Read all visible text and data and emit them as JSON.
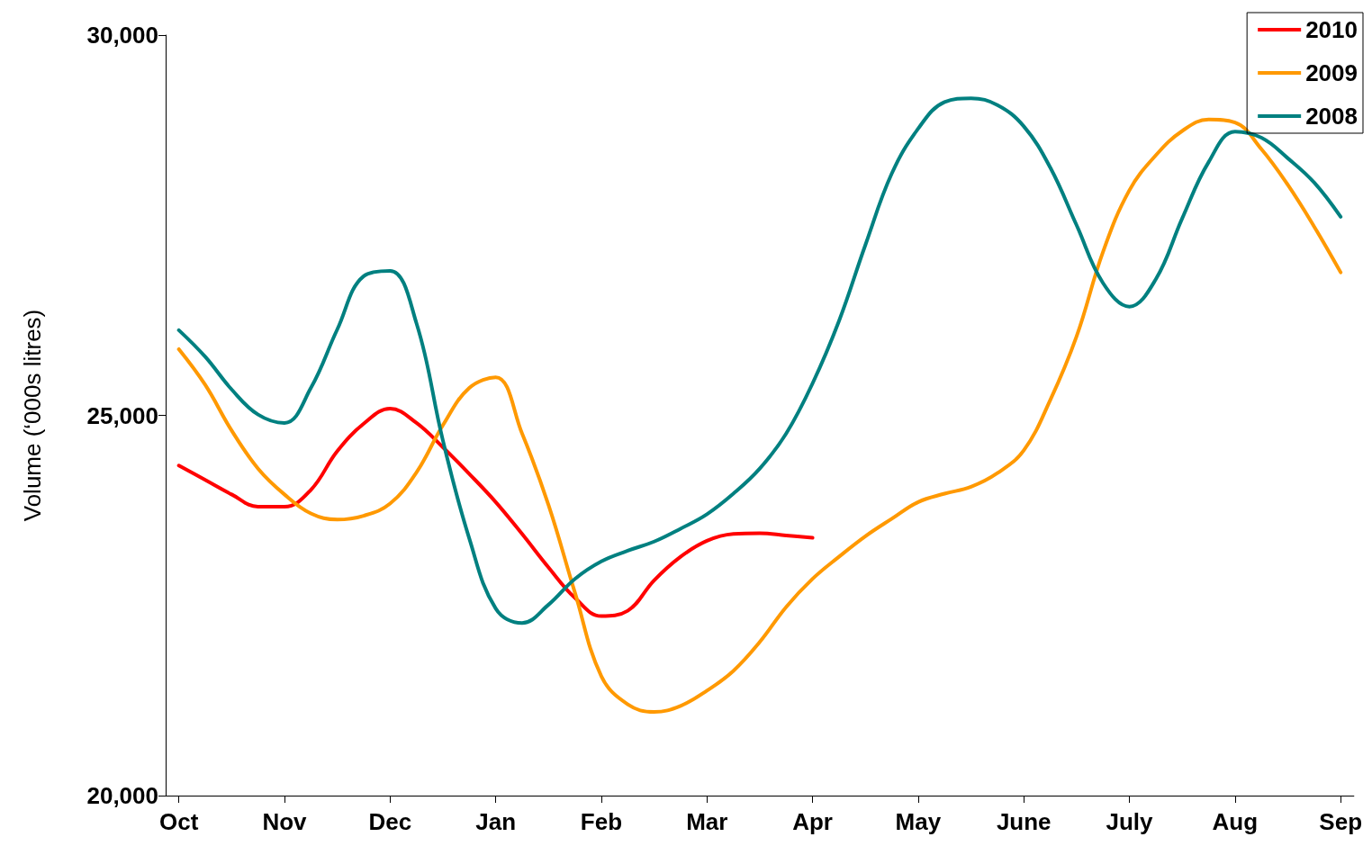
{
  "chart_data": {
    "type": "line",
    "ylabel": "Volume (‘000s litres)",
    "ylim": [
      20000,
      30000
    ],
    "yticks": [
      {
        "value": 20000,
        "label": "20,000"
      },
      {
        "value": 25000,
        "label": "25,000"
      },
      {
        "value": 30000,
        "label": "30,000"
      }
    ],
    "categories": [
      "Oct",
      null,
      null,
      null,
      "Nov",
      null,
      null,
      null,
      "Dec",
      null,
      null,
      null,
      "Jan",
      null,
      null,
      null,
      "Feb",
      null,
      null,
      null,
      "Mar",
      null,
      null,
      null,
      "Apr",
      null,
      null,
      null,
      "May",
      null,
      null,
      null,
      "June",
      null,
      null,
      null,
      "July",
      null,
      null,
      null,
      "Aug",
      null,
      null,
      null,
      "Sep"
    ],
    "grid": false,
    "legend": "top right",
    "marker": "none",
    "line_style": "solid",
    "series": [
      {
        "name": "2010",
        "color": "#ff0000",
        "values": [
          24340,
          24150,
          23960,
          23800,
          23800,
          24020,
          24530,
          24890,
          25090,
          24900,
          24580,
          24230,
          23860,
          23440,
          23000,
          22600,
          22360,
          22430,
          22830,
          23140,
          23350,
          23440,
          23450,
          23420,
          23390,
          null,
          null,
          null,
          null,
          null,
          null,
          null,
          null,
          null,
          null,
          null,
          null,
          null,
          null,
          null,
          null,
          null,
          null,
          null,
          null
        ]
      },
      {
        "name": "2009",
        "color": "#ff9900",
        "values": [
          25870,
          25400,
          24800,
          24300,
          23960,
          23710,
          23630,
          23680,
          23840,
          24250,
          24870,
          25360,
          25500,
          24760,
          23820,
          22670,
          21570,
          21200,
          21100,
          21180,
          21380,
          21640,
          22020,
          22480,
          22850,
          23140,
          23410,
          23640,
          23860,
          23970,
          24060,
          24240,
          24540,
          25200,
          26040,
          27150,
          27960,
          28420,
          28740,
          28890,
          28850,
          28500,
          28030,
          27480,
          26880
        ]
      },
      {
        "name": "2008",
        "color": "#008080",
        "values": [
          26120,
          25770,
          25340,
          25010,
          24900,
          25360,
          26130,
          26830,
          26900,
          26210,
          24670,
          23380,
          22460,
          22270,
          22510,
          22850,
          23080,
          23220,
          23340,
          23510,
          23700,
          23970,
          24300,
          24760,
          25420,
          26240,
          27240,
          28180,
          28770,
          29120,
          29170,
          29080,
          28800,
          28260,
          27500,
          26740,
          26430,
          26790,
          27590,
          28330,
          28730,
          28650,
          28380,
          28060,
          27610
        ]
      }
    ]
  }
}
